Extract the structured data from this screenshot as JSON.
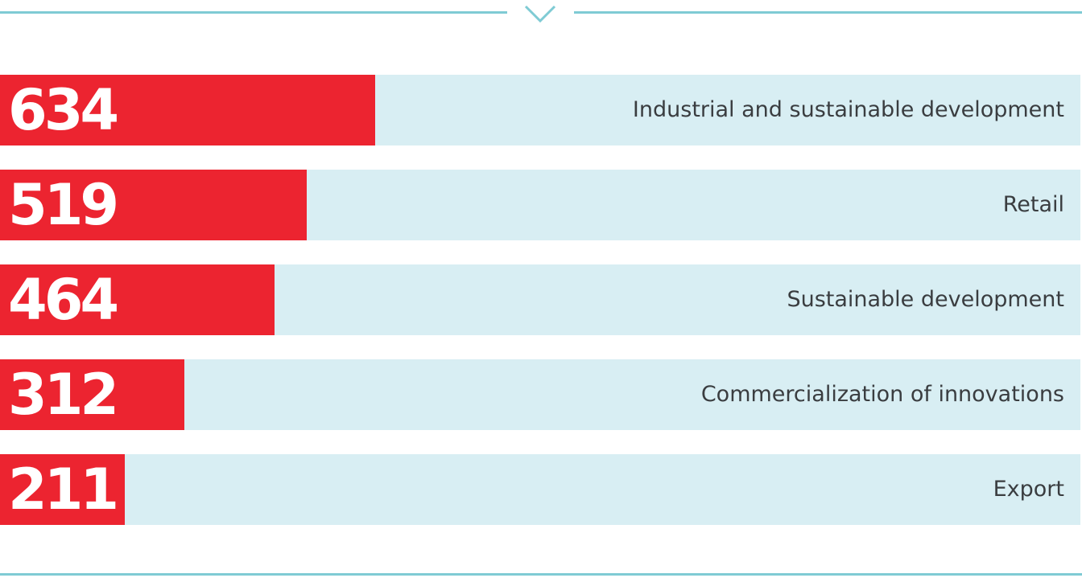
{
  "colors": {
    "bar": "#ec2430",
    "track": "#d8eef3",
    "rule": "#7fcbd4",
    "category_text": "#3a3d40",
    "value_text": "#ffffff"
  },
  "icons": {
    "top": "chevron-down-icon"
  },
  "chart_data": {
    "type": "bar",
    "orientation": "horizontal",
    "title": "",
    "xlabel": "",
    "ylabel": "",
    "grid": false,
    "legend": "none",
    "xlim": [
      0,
      1826
    ],
    "categories": [
      "Industrial and sustainable development",
      "Retail",
      "Sustainable development",
      "Commercialization of innovations",
      "Export"
    ],
    "values": [
      634,
      519,
      464,
      312,
      211
    ],
    "value_labels": [
      "634",
      "519",
      "464",
      "312",
      "211"
    ]
  }
}
